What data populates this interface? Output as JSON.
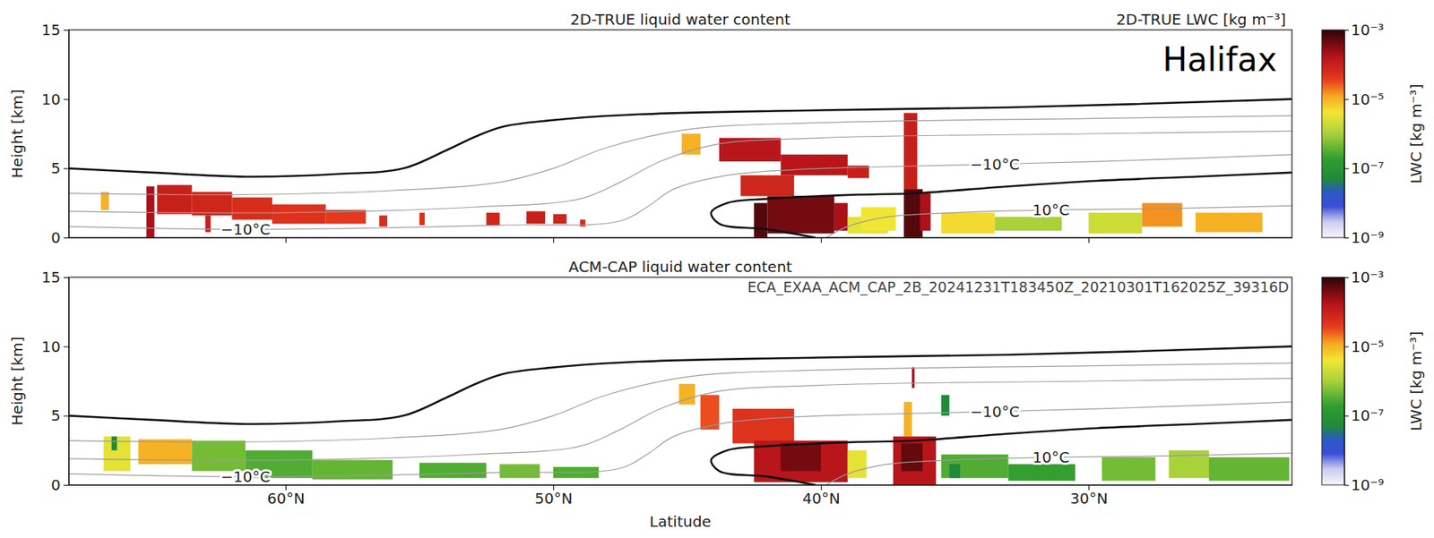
{
  "chart_data": [
    {
      "type": "heatmap",
      "title": "2D-TRUE liquid water content",
      "ylabel": "Height [km]",
      "xlim": [
        68.1,
        22.4
      ],
      "ylim": [
        0,
        15
      ],
      "xticks": [
        60,
        50,
        40,
        30
      ],
      "yticks": [
        0,
        5,
        10,
        15
      ],
      "tick_labels": "y",
      "annotations": [
        {
          "text": "Halifax"
        }
      ],
      "colorbar": {
        "title": "2D-TRUE LWC [kg m⁻³]",
        "label": "LWC [kg m⁻³]",
        "range": [
          1e-09,
          0.001
        ],
        "ticks": [
          {
            "value": 0.001,
            "label": "10⁻³"
          },
          {
            "value": 1e-05,
            "label": "10⁻⁵"
          },
          {
            "value": 1e-07,
            "label": "10⁻⁷"
          },
          {
            "value": 1e-09,
            "label": "10⁻⁹"
          }
        ]
      },
      "cells": [
        [
          66.9,
          66.6,
          2.0,
          3.3,
          1e-05
        ],
        [
          65.2,
          64.9,
          0.0,
          3.7,
          0.0002
        ],
        [
          64.8,
          63.5,
          1.7,
          3.8,
          0.0001
        ],
        [
          63.5,
          62.0,
          1.6,
          3.3,
          8e-05
        ],
        [
          63.0,
          62.8,
          0.4,
          1.6,
          0.0001
        ],
        [
          62.0,
          60.5,
          1.3,
          2.9,
          6e-05
        ],
        [
          60.5,
          58.5,
          1.0,
          2.4,
          5e-05
        ],
        [
          58.5,
          57.0,
          1.0,
          2.0,
          4e-05
        ],
        [
          56.5,
          56.2,
          0.8,
          1.6,
          6e-05
        ],
        [
          55.0,
          54.8,
          0.9,
          1.8,
          5e-05
        ],
        [
          52.5,
          52.0,
          0.9,
          1.8,
          8e-05
        ],
        [
          51.0,
          50.3,
          1.0,
          1.9,
          0.0001
        ],
        [
          50.0,
          49.5,
          1.0,
          1.7,
          8e-05
        ],
        [
          49.0,
          48.8,
          0.8,
          1.3,
          6e-05
        ],
        [
          45.2,
          44.5,
          6.0,
          7.5,
          1e-05
        ],
        [
          43.8,
          41.5,
          5.5,
          7.2,
          0.00015
        ],
        [
          41.5,
          39.0,
          4.5,
          6.0,
          0.00015
        ],
        [
          39.0,
          38.2,
          4.3,
          5.2,
          0.0001
        ],
        [
          43.0,
          41.0,
          3.0,
          4.5,
          8e-05
        ],
        [
          42.0,
          39.5,
          0.3,
          3.0,
          0.0004
        ],
        [
          42.5,
          42.0,
          0.0,
          2.5,
          0.0006
        ],
        [
          39.5,
          39.0,
          0.5,
          2.5,
          0.0002
        ],
        [
          39.0,
          37.5,
          0.3,
          1.5,
          3e-06
        ],
        [
          38.5,
          37.2,
          0.5,
          2.2,
          4e-06
        ],
        [
          36.9,
          36.4,
          3.5,
          9.0,
          0.0001
        ],
        [
          36.9,
          36.2,
          0.0,
          3.5,
          0.0006
        ],
        [
          36.3,
          35.9,
          0.5,
          3.2,
          0.0002
        ],
        [
          35.5,
          33.5,
          0.3,
          1.8,
          5e-06
        ],
        [
          33.5,
          31.0,
          0.5,
          1.5,
          1e-06
        ],
        [
          30.0,
          28.0,
          0.3,
          1.8,
          2e-06
        ],
        [
          28.0,
          26.5,
          0.8,
          2.5,
          1.5e-05
        ],
        [
          26.0,
          23.5,
          0.4,
          1.8,
          1e-05
        ]
      ],
      "contours": [
        {
          "x": [
            68.1,
            65,
            61.5,
            58,
            55.6,
            54,
            52.9,
            51.9,
            50.2,
            46.8,
            40,
            33,
            22.4
          ],
          "y": [
            5.0,
            4.7,
            4.4,
            4.6,
            5.0,
            6.3,
            7.3,
            8.0,
            8.45,
            8.9,
            9.2,
            9.4,
            10.0
          ],
          "line_style": "thick"
        },
        {
          "x": [
            22.4,
            26,
            29.7,
            33,
            36.5,
            38.6,
            40,
            42,
            43.5,
            44.1,
            43.8,
            42,
            40.2
          ],
          "y": [
            4.7,
            4.4,
            4.1,
            3.7,
            3.2,
            3.1,
            3.0,
            2.8,
            2.5,
            1.8,
            1.0,
            0.6,
            0.0
          ],
          "line_style": "thick"
        },
        {
          "x": [
            22.4,
            30,
            40,
            45,
            48,
            50,
            52,
            56,
            62,
            68.1
          ],
          "y": [
            8.8,
            8.6,
            8.3,
            7.8,
            6.5,
            5.0,
            4.0,
            3.4,
            3.1,
            3.2
          ],
          "line_style": "thin"
        },
        {
          "x": [
            22.4,
            30,
            40,
            44,
            46,
            47.5,
            49,
            53,
            60,
            68.1
          ],
          "y": [
            7.7,
            7.5,
            7.2,
            6.7,
            5.5,
            4.0,
            2.8,
            2.2,
            1.8,
            1.9
          ],
          "line_style": "thin"
        },
        {
          "x": [
            22.4,
            28,
            33.5,
            38,
            41,
            43.5,
            45.5,
            46.5,
            47.5,
            52,
            61.5,
            68.1
          ],
          "y": [
            6.0,
            5.6,
            5.3,
            5.1,
            4.9,
            4.5,
            3.5,
            2.2,
            1.2,
            0.9,
            0.6,
            0.8
          ],
          "line_style": "thin"
        },
        {
          "x": [
            22.4,
            27,
            31.4,
            35,
            37.5,
            39,
            39.8
          ],
          "y": [
            2.3,
            2.1,
            2.0,
            1.8,
            1.5,
            0.8,
            0.0
          ],
          "line_style": "thin"
        }
      ],
      "contour_labels": [
        {
          "text": "−10°C",
          "x": 33.5,
          "y": 5.3
        },
        {
          "text": "10°C",
          "x": 31.4,
          "y": 2.0
        },
        {
          "text": "−10°C",
          "x": 61.5,
          "y": 0.6
        }
      ]
    },
    {
      "type": "heatmap",
      "title": "ACM-CAP liquid water content",
      "xlabel": "Latitude",
      "ylabel": "Height [km]",
      "xlim": [
        68.1,
        22.4
      ],
      "ylim": [
        0,
        15
      ],
      "xticks": [
        {
          "value": 60,
          "label": "60°N"
        },
        {
          "value": 50,
          "label": "50°N"
        },
        {
          "value": 40,
          "label": "40°N"
        },
        {
          "value": 30,
          "label": "30°N"
        }
      ],
      "yticks": [
        0,
        5,
        10,
        15
      ],
      "annotations": [
        {
          "text": "ECA_EXAA_ACM_CAP_2B_20241231T183450Z_20210301T162025Z_39316D"
        }
      ],
      "colorbar": {
        "label": "LWC [kg m⁻³]",
        "range": [
          1e-09,
          0.001
        ],
        "ticks": [
          {
            "value": 0.001,
            "label": "10⁻³"
          },
          {
            "value": 1e-05,
            "label": "10⁻⁵"
          },
          {
            "value": 1e-07,
            "label": "10⁻⁷"
          },
          {
            "value": 1e-09,
            "label": "10⁻⁹"
          }
        ]
      },
      "cells": [
        [
          66.8,
          65.8,
          1.0,
          3.5,
          3e-06
        ],
        [
          66.5,
          66.3,
          2.5,
          3.5,
          5e-08
        ],
        [
          65.5,
          63.5,
          1.5,
          3.3,
          1e-05
        ],
        [
          63.5,
          61.5,
          1.0,
          3.2,
          5e-07
        ],
        [
          61.5,
          59.0,
          0.5,
          2.5,
          3e-07
        ],
        [
          59.0,
          56.0,
          0.4,
          1.8,
          4e-07
        ],
        [
          55.0,
          52.5,
          0.5,
          1.6,
          3e-07
        ],
        [
          52.0,
          50.5,
          0.5,
          1.5,
          5e-07
        ],
        [
          50.0,
          48.3,
          0.5,
          1.3,
          3e-07
        ],
        [
          45.3,
          44.7,
          5.8,
          7.3,
          1e-05
        ],
        [
          44.5,
          43.8,
          4.0,
          6.5,
          3e-05
        ],
        [
          43.3,
          41.0,
          3.0,
          5.5,
          5e-05
        ],
        [
          42.5,
          39.0,
          0.2,
          3.2,
          0.00015
        ],
        [
          41.5,
          40.0,
          1.0,
          3.0,
          0.0004
        ],
        [
          39.0,
          38.3,
          0.5,
          2.5,
          3e-06
        ],
        [
          37.3,
          35.7,
          0.0,
          3.5,
          0.00015
        ],
        [
          37.0,
          36.2,
          1.0,
          3.0,
          0.0005
        ],
        [
          36.9,
          36.6,
          3.5,
          6.0,
          1e-05
        ],
        [
          36.6,
          36.5,
          7.0,
          8.5,
          0.0002
        ],
        [
          35.5,
          35.2,
          5.0,
          6.5,
          5e-08
        ],
        [
          35.5,
          33.0,
          0.5,
          2.2,
          3e-07
        ],
        [
          35.2,
          34.8,
          0.5,
          1.5,
          5e-08
        ],
        [
          33.0,
          30.5,
          0.3,
          1.5,
          2e-07
        ],
        [
          29.5,
          27.5,
          0.3,
          2.0,
          5e-07
        ],
        [
          27.0,
          25.5,
          0.5,
          2.5,
          1e-06
        ],
        [
          25.5,
          22.5,
          0.3,
          2.0,
          4e-07
        ]
      ],
      "contours": [
        {
          "x": [
            68.1,
            65,
            61.5,
            58,
            55.6,
            54,
            52.9,
            51.9,
            50.2,
            46.8,
            40,
            33,
            22.4
          ],
          "y": [
            5.0,
            4.7,
            4.4,
            4.6,
            5.0,
            6.3,
            7.3,
            8.0,
            8.45,
            8.9,
            9.2,
            9.4,
            10.0
          ],
          "line_style": "thick"
        },
        {
          "x": [
            22.4,
            26,
            29.7,
            33,
            36.5,
            38.6,
            40,
            42,
            43.5,
            44.1,
            43.8,
            42,
            40.2
          ],
          "y": [
            4.7,
            4.4,
            4.1,
            3.7,
            3.2,
            3.1,
            3.0,
            2.8,
            2.5,
            1.8,
            1.0,
            0.6,
            0.0
          ],
          "line_style": "thick"
        },
        {
          "x": [
            22.4,
            30,
            40,
            45,
            48,
            50,
            52,
            56,
            62,
            68.1
          ],
          "y": [
            8.8,
            8.6,
            8.3,
            7.8,
            6.5,
            5.0,
            4.0,
            3.4,
            3.1,
            3.2
          ],
          "line_style": "thin"
        },
        {
          "x": [
            22.4,
            30,
            40,
            44,
            46,
            47.5,
            49,
            53,
            60,
            68.1
          ],
          "y": [
            7.7,
            7.5,
            7.2,
            6.7,
            5.5,
            4.0,
            2.8,
            2.2,
            1.8,
            1.9
          ],
          "line_style": "thin"
        },
        {
          "x": [
            22.4,
            28,
            33.5,
            38,
            41,
            43.5,
            45.5,
            46.5,
            47.5,
            52,
            61.5,
            68.1
          ],
          "y": [
            6.0,
            5.6,
            5.3,
            5.1,
            4.9,
            4.5,
            3.5,
            2.2,
            1.2,
            0.9,
            0.6,
            0.8
          ],
          "line_style": "thin"
        },
        {
          "x": [
            22.4,
            27,
            31.4,
            35,
            37.5,
            39,
            39.8
          ],
          "y": [
            2.3,
            2.1,
            2.0,
            1.8,
            1.5,
            0.8,
            0.0
          ],
          "line_style": "thin"
        }
      ],
      "contour_labels": [
        {
          "text": "−10°C",
          "x": 33.5,
          "y": 5.3
        },
        {
          "text": "10°C",
          "x": 31.4,
          "y": 2.0
        },
        {
          "text": "−10°C",
          "x": 61.5,
          "y": 0.6
        }
      ]
    }
  ]
}
